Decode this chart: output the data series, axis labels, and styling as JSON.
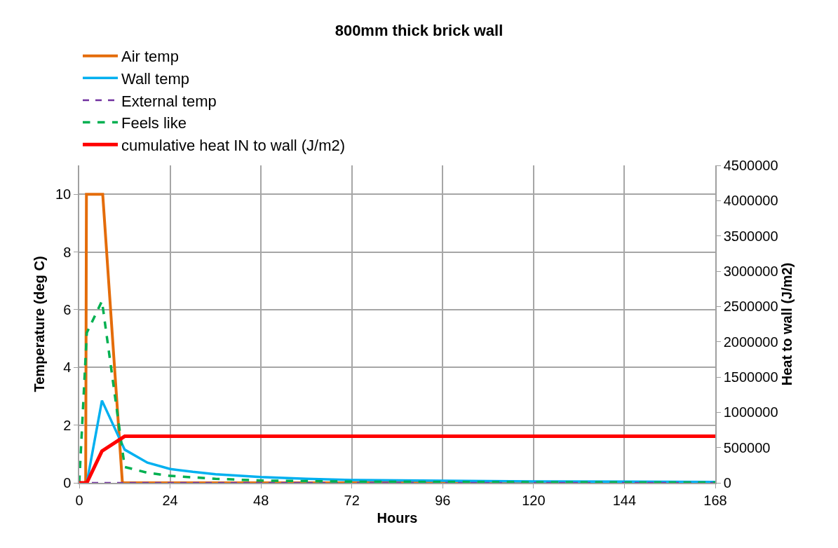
{
  "chart_data": {
    "type": "line",
    "title": "800mm thick brick wall",
    "xlabel": "Hours",
    "ylabel": "Temperature (deg C)",
    "y2label": "Heat to wall (J/m2)",
    "xlim": [
      0,
      168
    ],
    "xticks": [
      0,
      24,
      48,
      72,
      96,
      120,
      144,
      168
    ],
    "ylim": [
      0,
      11
    ],
    "yticks": [
      0,
      2,
      4,
      6,
      8,
      10
    ],
    "y2lim": [
      0,
      4500000
    ],
    "y2ticks": [
      0,
      500000,
      1000000,
      1500000,
      2000000,
      2500000,
      3000000,
      3500000,
      4000000,
      4500000
    ],
    "grid": true,
    "legend": "top",
    "marker": "none",
    "series": [
      {
        "name": "Air temp",
        "color": "#e46c0a",
        "line_style": "solid",
        "x": [
          0,
          1.7,
          1.9,
          6.2,
          11.4,
          168
        ],
        "values": [
          0,
          0,
          10,
          10,
          0,
          0
        ]
      },
      {
        "name": "Wall temp",
        "color": "#00b0f0",
        "line_style": "solid",
        "x": [
          0,
          2,
          6,
          12,
          18,
          24,
          30,
          36,
          48,
          60,
          72,
          96,
          120,
          144,
          168
        ],
        "values": [
          0,
          0,
          2.85,
          1.15,
          0.7,
          0.48,
          0.38,
          0.3,
          0.2,
          0.14,
          0.1,
          0.07,
          0.05,
          0.04,
          0.03
        ]
      },
      {
        "name": "External temp",
        "color": "#7030a0",
        "line_style": "dashed",
        "x": [
          0,
          168
        ],
        "values": [
          0,
          0
        ]
      },
      {
        "name": "Feels like",
        "color": "#00b050",
        "line_style": "dashed",
        "x": [
          0,
          2,
          6,
          12,
          18,
          24,
          36,
          48,
          72,
          96,
          120,
          168
        ],
        "values": [
          0,
          5.2,
          6.3,
          0.55,
          0.35,
          0.24,
          0.14,
          0.08,
          0.04,
          0.03,
          0.02,
          0.01
        ]
      },
      {
        "name": "cumulative heat IN to wall (J/m2)",
        "color": "#ff0000",
        "line_style": "solid",
        "axis": "y2",
        "x": [
          0,
          2,
          6,
          12,
          168
        ],
        "values": [
          0,
          0,
          450000,
          660000,
          660000
        ]
      }
    ]
  }
}
